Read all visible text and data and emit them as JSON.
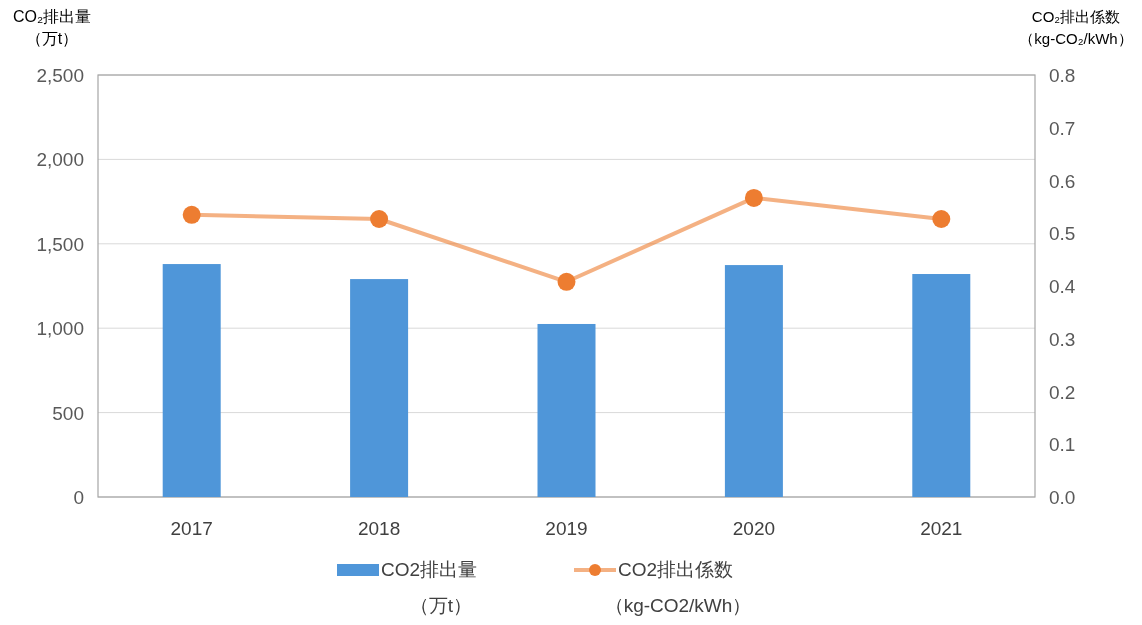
{
  "chart_data": {
    "type": "bar",
    "ylabel": "CO₂排出量（万t）",
    "y2label": "CO₂排出係数（kg-CO₂/kWh）",
    "categories": [
      "2017",
      "2018",
      "2019",
      "2020",
      "2021"
    ],
    "series": [
      {
        "name": "CO2排出量（万t）",
        "color": "#4f96d9",
        "values": [
          1380,
          1291,
          1025,
          1374,
          1321
        ]
      },
      {
        "name": "CO2排出係数（kg-CO2/kWh）",
        "type": "line",
        "axis": "y2",
        "color": "#ed7d31",
        "marker": "circle",
        "values": [
          0.535,
          0.527,
          0.408,
          0.567,
          0.527
        ]
      }
    ],
    "ylim": [
      0,
      2500
    ],
    "yticks": [
      {
        "value": 0,
        "label": "0"
      },
      {
        "value": 500,
        "label": "500"
      },
      {
        "value": 1000,
        "label": "1,000"
      },
      {
        "value": 1500,
        "label": "1,500"
      },
      {
        "value": 2000,
        "label": "2,000"
      },
      {
        "value": 2500,
        "label": "2,500"
      }
    ],
    "y2lim": [
      0,
      0.8
    ],
    "y2ticks": [
      {
        "value": 0,
        "label": "0.0"
      },
      {
        "value": 0.1,
        "label": "0.1"
      },
      {
        "value": 0.2,
        "label": "0.2"
      },
      {
        "value": 0.3,
        "label": "0.3"
      },
      {
        "value": 0.4,
        "label": "0.4"
      },
      {
        "value": 0.5,
        "label": "0.5"
      },
      {
        "value": 0.6,
        "label": "0.6"
      },
      {
        "value": 0.7,
        "label": "0.7"
      },
      {
        "value": 0.8,
        "label": "0.8"
      }
    ],
    "grid": "y",
    "legend": "bottom"
  }
}
